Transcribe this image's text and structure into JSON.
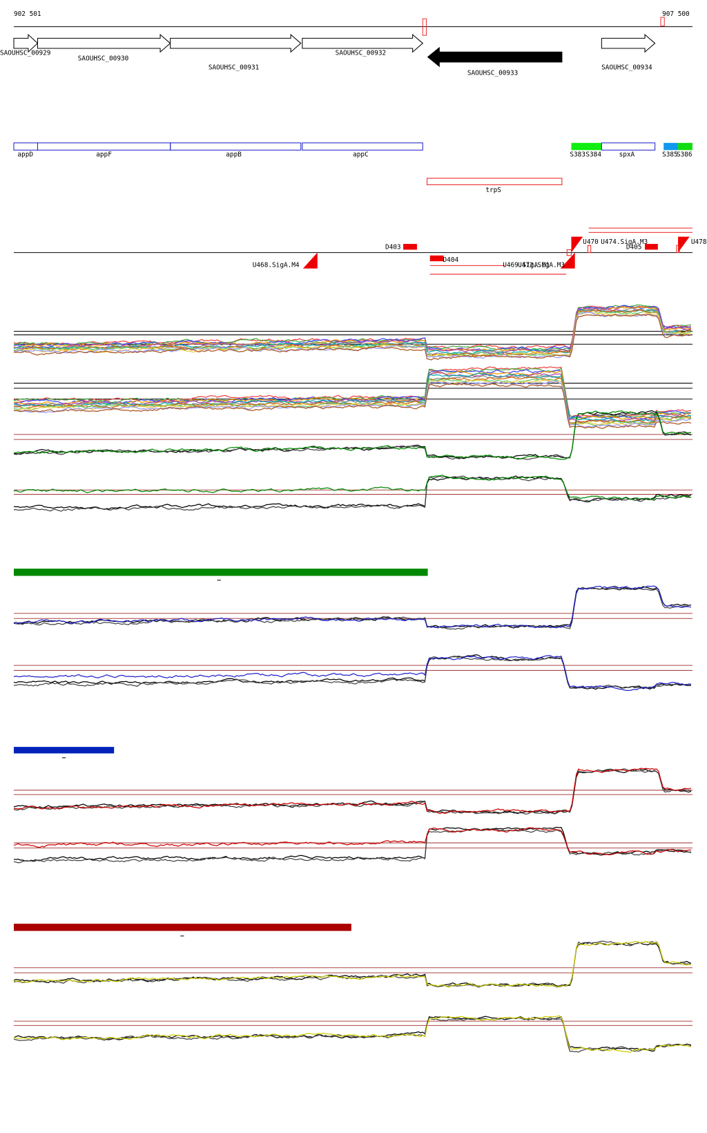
{
  "ruler": {
    "start": "902 501",
    "end": "907 500"
  },
  "genes": [
    "SAOUHSC_00929",
    "SAOUHSC_00930",
    "SAOUHSC_00931",
    "SAOUHSC_00932",
    "SAOUHSC_00933",
    "SAOUHSC_00934"
  ],
  "features": [
    "appD",
    "appF",
    "appB",
    "appC",
    "S383",
    "S384",
    "spxA",
    "S385",
    "S386",
    "trpS"
  ],
  "elements": [
    "D403",
    "D404",
    "U468.SigA.M4",
    "U469.SigA.M1",
    "U472.SigA.M3",
    "U470",
    "U474.SigA.M3",
    "D405",
    "U478"
  ]
}
